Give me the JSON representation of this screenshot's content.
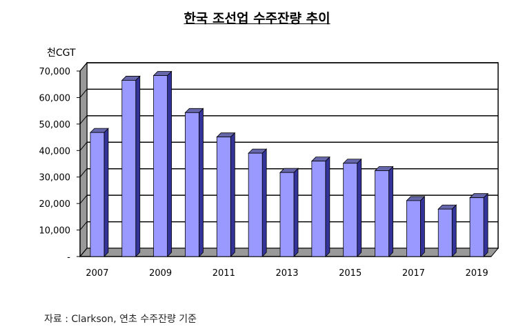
{
  "chart_data": {
    "type": "bar",
    "title": "한국 조선업 수주잔량 추이",
    "ylabel": "천CGT",
    "xlabel": "",
    "categories": [
      "2007",
      "2008",
      "2009",
      "2010",
      "2011",
      "2012",
      "2013",
      "2014",
      "2015",
      "2016",
      "2017",
      "2018",
      "2019"
    ],
    "x_tick_labels": [
      "2007",
      "",
      "2009",
      "",
      "2011",
      "",
      "2013",
      "",
      "2015",
      "",
      "2017",
      "",
      "2019"
    ],
    "values": [
      46800,
      66500,
      68300,
      54300,
      45100,
      39000,
      31700,
      36000,
      35200,
      32400,
      21100,
      17900,
      22200
    ],
    "ylim": [
      0,
      70000
    ],
    "y_ticks": [
      0,
      10000,
      20000,
      30000,
      40000,
      50000,
      60000,
      70000
    ],
    "y_tick_labels": [
      "-",
      "10,000",
      "20,000",
      "30,000",
      "40,000",
      "50,000",
      "60,000",
      "70,000"
    ],
    "grid": true,
    "style": "3d-column",
    "bar_color": "#9999ff"
  },
  "source": "자료 : Clarkson, 연초 수주잔량 기준"
}
